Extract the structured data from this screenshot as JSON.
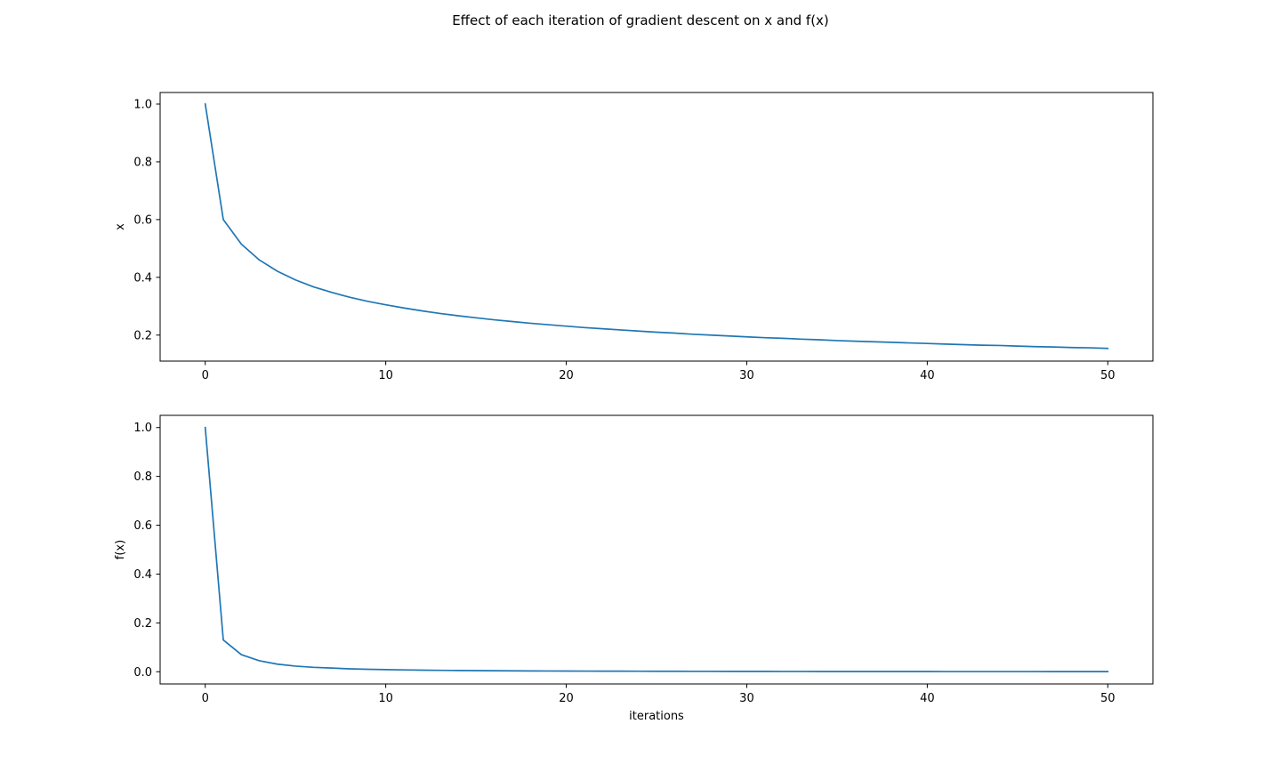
{
  "figure": {
    "suptitle": "Effect of each iteration of gradient descent on x and f(x)"
  },
  "chart_data": [
    {
      "type": "line",
      "title": "",
      "xlabel": "",
      "ylabel": "x",
      "xlim": [
        -2.5,
        52.5
      ],
      "ylim": [
        0.11,
        1.04
      ],
      "xticks": [
        0,
        10,
        20,
        30,
        40,
        50
      ],
      "xtick_labels": [
        "0",
        "10",
        "20",
        "30",
        "40",
        "50"
      ],
      "yticks": [
        0.2,
        0.4,
        0.6,
        0.8,
        1.0
      ],
      "ytick_labels": [
        "0.2",
        "0.4",
        "0.6",
        "0.8",
        "1.0"
      ],
      "grid": false,
      "color": "#1f77b4",
      "series": [
        {
          "x": [
            0,
            1,
            2,
            3,
            4,
            5,
            6,
            7,
            8,
            9,
            10,
            11,
            12,
            13,
            14,
            15,
            16,
            17,
            18,
            19,
            20,
            21,
            22,
            23,
            24,
            25,
            26,
            27,
            28,
            29,
            30,
            31,
            32,
            33,
            34,
            35,
            36,
            37,
            38,
            39,
            40,
            41,
            42,
            43,
            44,
            45,
            46,
            47,
            48,
            49,
            50
          ],
          "values": [
            1.0,
            0.6,
            0.515,
            0.46,
            0.421,
            0.391,
            0.367,
            0.348,
            0.331,
            0.317,
            0.305,
            0.294,
            0.284,
            0.275,
            0.267,
            0.26,
            0.253,
            0.247,
            0.241,
            0.236,
            0.231,
            0.226,
            0.222,
            0.218,
            0.214,
            0.21,
            0.207,
            0.203,
            0.2,
            0.197,
            0.194,
            0.191,
            0.189,
            0.186,
            0.184,
            0.181,
            0.179,
            0.177,
            0.175,
            0.173,
            0.171,
            0.169,
            0.167,
            0.165,
            0.164,
            0.162,
            0.16,
            0.159,
            0.157,
            0.156,
            0.154
          ]
        }
      ]
    },
    {
      "type": "line",
      "title": "",
      "xlabel": "iterations",
      "ylabel": "f(x)",
      "xlim": [
        -2.5,
        52.5
      ],
      "ylim": [
        -0.05,
        1.05
      ],
      "xticks": [
        0,
        10,
        20,
        30,
        40,
        50
      ],
      "xtick_labels": [
        "0",
        "10",
        "20",
        "30",
        "40",
        "50"
      ],
      "yticks": [
        0.0,
        0.2,
        0.4,
        0.6,
        0.8,
        1.0
      ],
      "ytick_labels": [
        "0.0",
        "0.2",
        "0.4",
        "0.6",
        "0.8",
        "1.0"
      ],
      "grid": false,
      "color": "#1f77b4",
      "series": [
        {
          "x": [
            0,
            1,
            2,
            3,
            4,
            5,
            6,
            7,
            8,
            9,
            10,
            11,
            12,
            13,
            14,
            15,
            16,
            17,
            18,
            19,
            20,
            21,
            22,
            23,
            24,
            25,
            26,
            27,
            28,
            29,
            30,
            31,
            32,
            33,
            34,
            35,
            36,
            37,
            38,
            39,
            40,
            41,
            42,
            43,
            44,
            45,
            46,
            47,
            48,
            49,
            50
          ],
          "values": [
            1.0,
            0.13,
            0.07,
            0.045,
            0.031,
            0.023,
            0.018,
            0.015,
            0.012,
            0.01,
            0.0087,
            0.0075,
            0.0065,
            0.0057,
            0.0051,
            0.0046,
            0.0041,
            0.0037,
            0.0034,
            0.0031,
            0.0028,
            0.0026,
            0.0024,
            0.0023,
            0.0021,
            0.002,
            0.0018,
            0.0017,
            0.0016,
            0.0015,
            0.0014,
            0.0014,
            0.0013,
            0.0012,
            0.0011,
            0.0011,
            0.001,
            0.001,
            0.0009,
            0.0009,
            0.0009,
            0.0008,
            0.0008,
            0.0007,
            0.0007,
            0.0007,
            0.0007,
            0.0006,
            0.0006,
            0.0006,
            0.0006
          ]
        }
      ]
    }
  ]
}
